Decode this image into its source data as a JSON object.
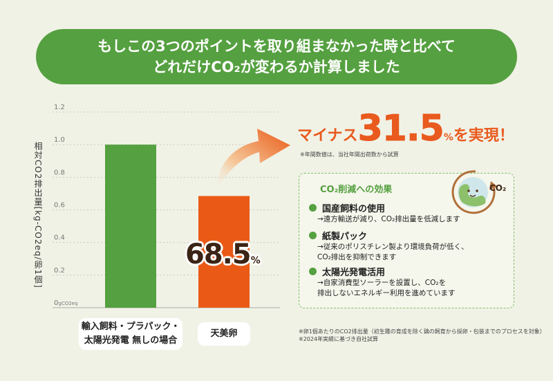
{
  "banner": {
    "line1": "もしこの3つのポイントを取り組まなかった時と比べて",
    "line2": "どれだけCO₂が変わるか計算しました"
  },
  "axis_title": "相対CO2排出量[kg-CO2eq/卵1個]",
  "reduction": {
    "prefix": "マイナス",
    "value": "31.5",
    "unit": "%",
    "suffix": "を実現！"
  },
  "annual_note": "※年間数値は、当社年間出荷数から試算",
  "bar_value": {
    "value": "68.5",
    "unit": "%"
  },
  "effects": {
    "title": "CO₂削減への効果",
    "items": [
      {
        "title": "国産飼料の使用",
        "desc": "→遠方輸送が減り、CO₂排出量を低減します"
      },
      {
        "title": "紙製パック",
        "desc": "→従来のポリスチレン製より環境負荷が低く、\nCO₂排出を抑制できます"
      },
      {
        "title": "太陽光発電活用",
        "desc": "→自家消費型ソーラーを設置し、CO₂を\n排出しないエネルギー利用を進めています"
      }
    ]
  },
  "co2_badge": "CO₂",
  "footnote": "※卵1個あたりのCO2排出量（初生雛の育成を除く鶏の飼育から採卵・包装までのプロセスを対象）\n※2024年実績に基づき自社試算",
  "colors": {
    "green": "#55a040",
    "orange": "#ea5a16",
    "background": "#f1f2e6"
  },
  "chart_data": {
    "type": "bar",
    "categories": [
      "輸入飼料・プラパック・\n太陽光発電 無しの場合",
      "天美卵"
    ],
    "values": [
      1.0,
      0.685
    ],
    "colors": [
      "#55a040",
      "#ea5a16"
    ],
    "ylim": [
      0,
      1.2
    ],
    "yticks": [
      "0",
      "0.2",
      "0.4",
      "0.6",
      "0.8",
      "1.0",
      "1.2"
    ],
    "zero_unit": "gCO2eq",
    "grid": true
  }
}
